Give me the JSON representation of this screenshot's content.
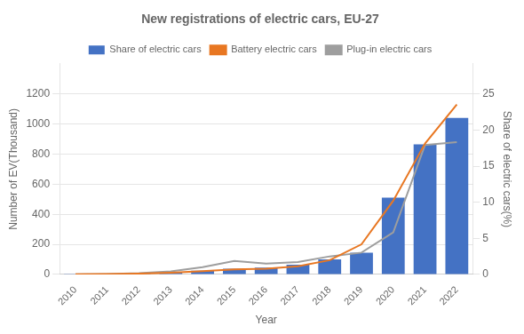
{
  "chart_data": {
    "type": "bar",
    "title": "New registrations of electric cars, EU-27",
    "xlabel": "Year",
    "ylabel": "Number of EV(Thousand)",
    "y2label": "Share of electric cars(%)",
    "categories": [
      "2010",
      "2011",
      "2012",
      "2013",
      "2014",
      "2015",
      "2016",
      "2017",
      "2018",
      "2019",
      "2020",
      "2021",
      "2022"
    ],
    "series": [
      {
        "name": "Share of electric cars",
        "type": "bar",
        "color": "#4472C4",
        "values": [
          1,
          2,
          5,
          14,
          25,
          38,
          45,
          65,
          100,
          145,
          510,
          865,
          1040
        ]
      },
      {
        "name": "Battery electric cars",
        "type": "line",
        "color": "#E87722",
        "values": [
          1,
          2,
          5,
          12,
          22,
          33,
          38,
          55,
          95,
          200,
          490,
          870,
          1130
        ]
      },
      {
        "name": "Plug-in electric cars",
        "type": "line",
        "color": "#9E9E9E",
        "values": [
          1,
          3,
          8,
          20,
          48,
          90,
          72,
          82,
          120,
          145,
          280,
          860,
          880
        ]
      }
    ],
    "ylim": [
      0,
      1400
    ],
    "yticks": [
      0,
      200,
      400,
      600,
      800,
      1000,
      1200
    ],
    "y2lim": [
      0,
      29.17
    ],
    "y2ticks": [
      0,
      5,
      10,
      15,
      20,
      25
    ],
    "grid": true,
    "legend": "top"
  }
}
